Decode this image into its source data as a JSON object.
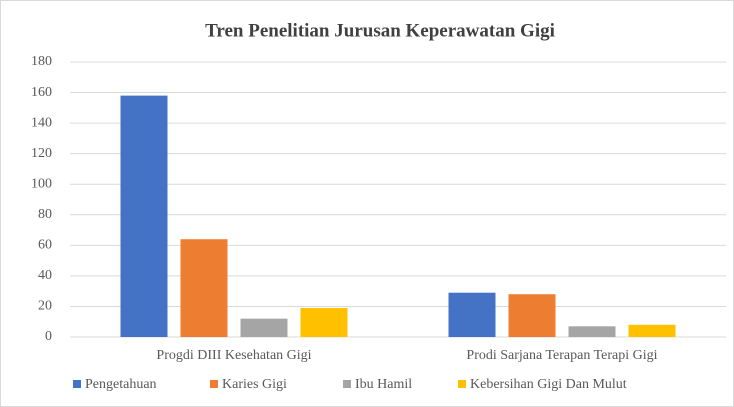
{
  "chart_data": {
    "type": "bar",
    "title": "Tren Penelitian Jurusan Keperawatan Gigi",
    "categories": [
      "Progdi DIII Kesehatan Gigi",
      "Prodi Sarjana Terapan Terapi Gigi"
    ],
    "series": [
      {
        "name": "Pengetahuan",
        "color": "#4472c4",
        "values": [
          158,
          29
        ]
      },
      {
        "name": "Karies Gigi",
        "color": "#ed7d31",
        "values": [
          64,
          28
        ]
      },
      {
        "name": "Ibu Hamil",
        "color": "#a5a5a5",
        "values": [
          12,
          7
        ]
      },
      {
        "name": "Kebersihan Gigi Dan Mulut",
        "color": "#ffc000",
        "values": [
          19,
          8
        ]
      }
    ],
    "ylim": [
      0,
      180
    ],
    "yticks": [
      0,
      20,
      40,
      60,
      80,
      100,
      120,
      140,
      160,
      180
    ],
    "grid": true,
    "legend": "bottom"
  }
}
